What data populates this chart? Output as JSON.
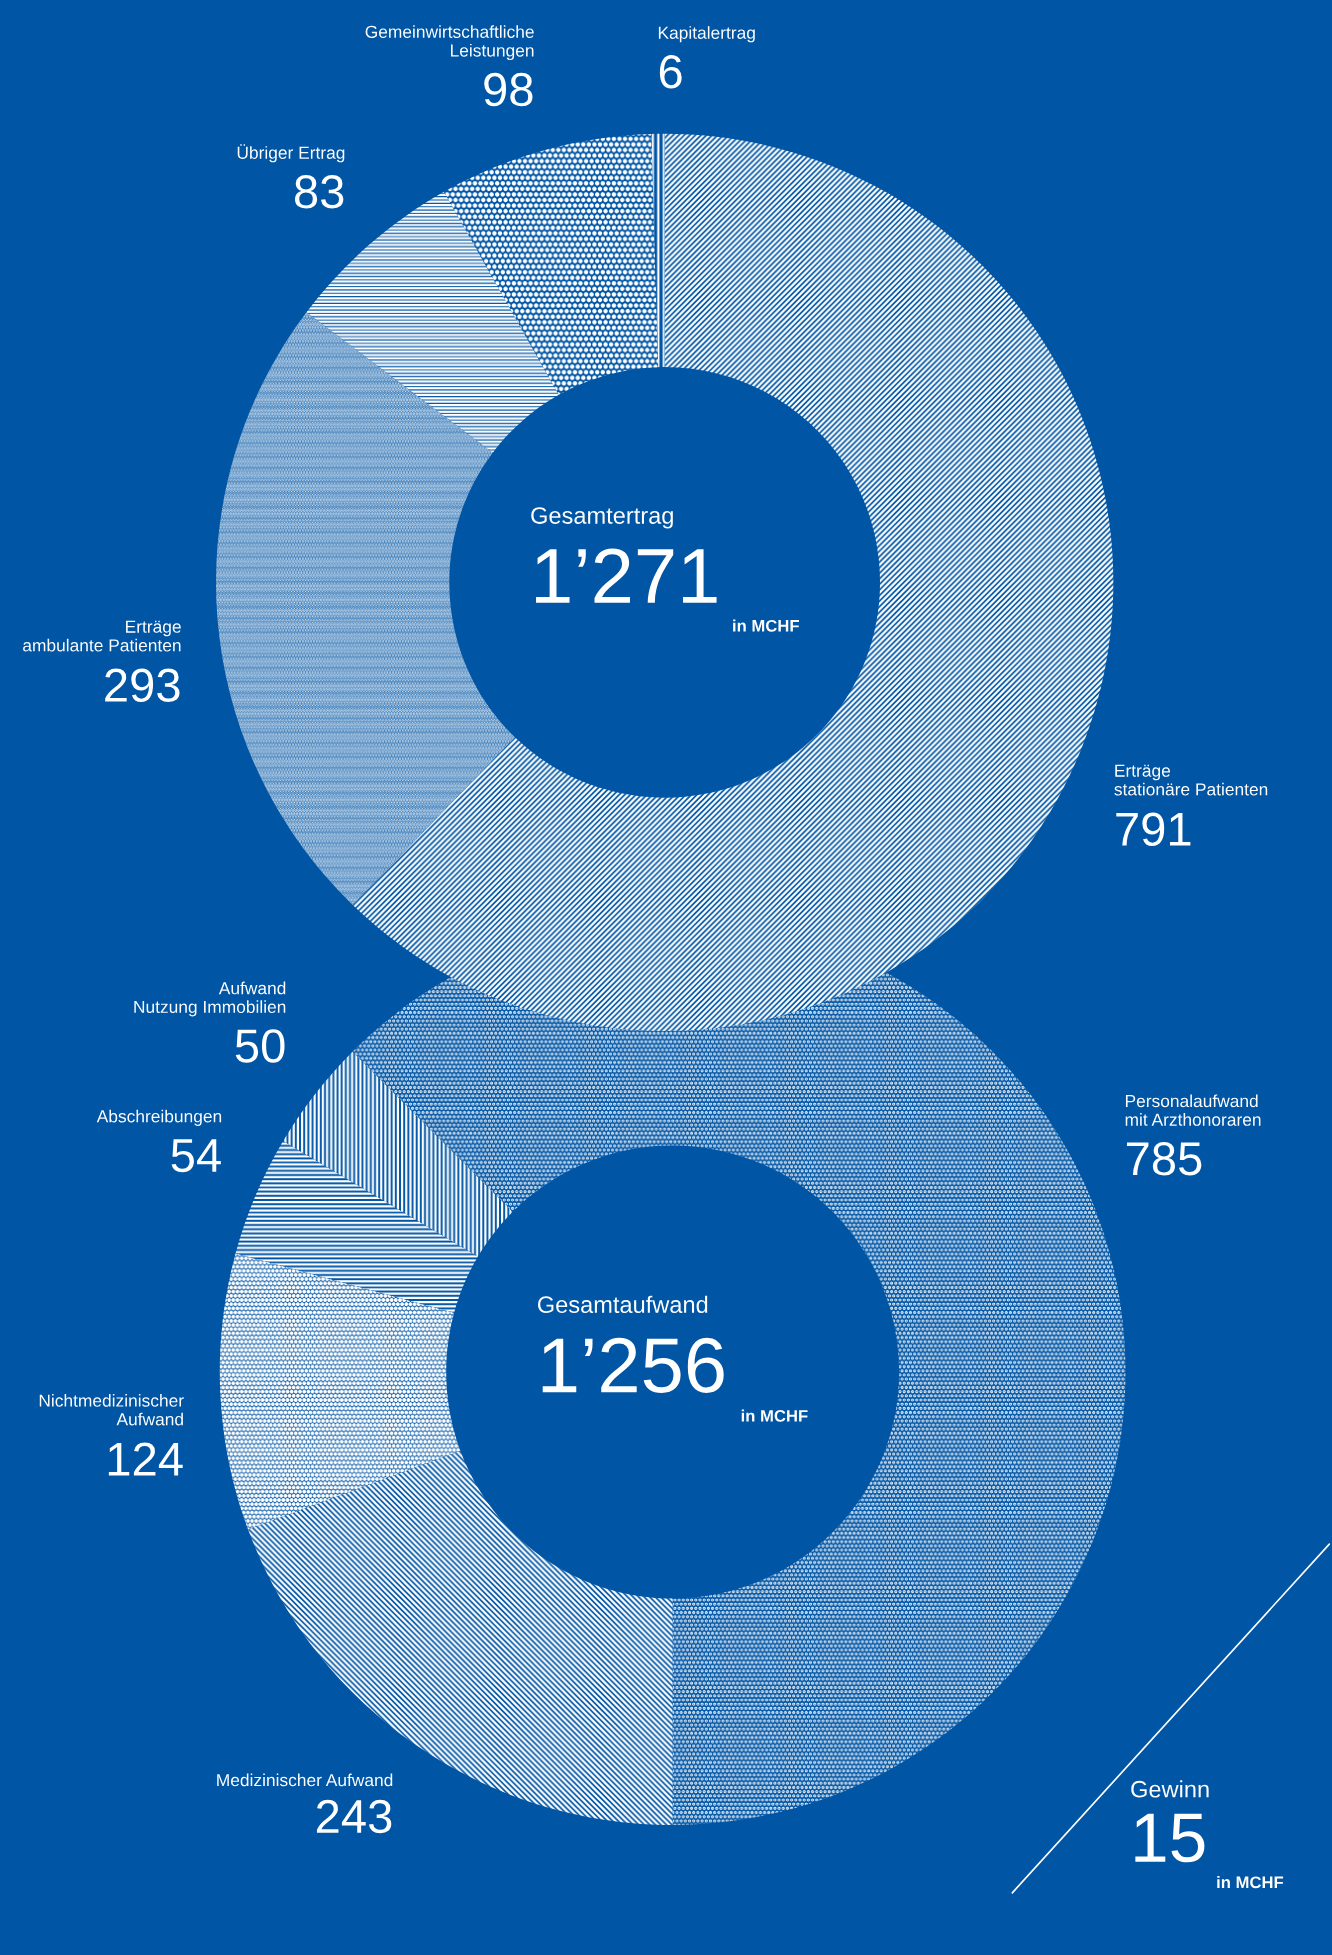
{
  "chart_data": [
    {
      "type": "donut",
      "categories": [
        "Erträge\nstationäre Patienten",
        "Erträge\nambulante Patienten",
        "Übriger Ertrag",
        "Gemeinwirtschaftliche\nLeistungen",
        "Kapitalertrag"
      ],
      "values": [
        791,
        293,
        83,
        98,
        6
      ],
      "colors": [
        "#ffffff",
        "#ffffff",
        "#ffffff",
        "#ffffff",
        "#ffffff"
      ],
      "data_labels": true,
      "annotations": [
        "Gesamtertrag",
        "1’271",
        "in MCHF"
      ]
    },
    {
      "type": "donut",
      "categories": [
        "Personalaufwand\nmit Arzthonoraren",
        "Medizinischer Aufwand",
        "Nichtmedizinischer\nAufwand",
        "Abschreibungen",
        "Aufwand\nNutzung Immobilien"
      ],
      "values": [
        785,
        243,
        124,
        54,
        50
      ],
      "colors": [
        "#ffffff",
        "#ffffff",
        "#ffffff",
        "#ffffff",
        "#ffffff"
      ],
      "data_labels": true,
      "annotations": [
        "Gesamtaufwand",
        "1’256",
        "in MCHF",
        "Gewinn",
        "15",
        "in MCHF"
      ]
    }
  ]
}
